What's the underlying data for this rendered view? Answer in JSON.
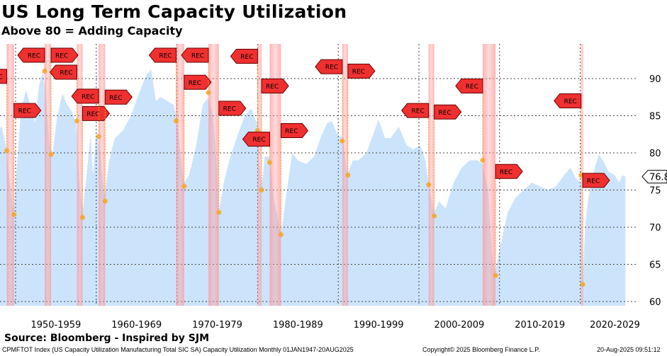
{
  "header": {
    "title": "US Long Term Capacity Utilization",
    "subtitle": "Above 80 = Adding Capacity"
  },
  "footer": {
    "source": "Source: Bloomberg - Inspired by SJM",
    "index_desc": "CPMFTOT Index (US Capacity Utilization Manufacturing Total SIC SA) Capacity Utilization  Monthly 01JAN1947-20AUG2025",
    "copyright": "Copyright© 2025 Bloomberg Finance L.P.",
    "timestamp": "20-Aug-2025 09:51:12"
  },
  "colors": {
    "area": "#cce4fb",
    "band": "#ff9a9a",
    "marker": "#f03030",
    "dot": "#f5a623"
  },
  "chart_data": {
    "type": "area",
    "title": "US Long Term Capacity Utilization",
    "ylim": [
      59,
      95
    ],
    "xlim": [
      1947,
      2028.5
    ],
    "yticks": [
      60,
      65,
      70,
      75,
      80,
      85,
      90
    ],
    "xgrid": [
      1950,
      1960,
      1970,
      1980,
      1990,
      2000,
      2010,
      2020
    ],
    "xtick_labels": [
      {
        "label": "1950-1959",
        "year": 1955
      },
      {
        "label": "1960-1969",
        "year": 1965
      },
      {
        "label": "1970-1979",
        "year": 1975
      },
      {
        "label": "1980-1989",
        "year": 1985
      },
      {
        "label": "1990-1999",
        "year": 1995
      },
      {
        "label": "2000-2009",
        "year": 2005
      },
      {
        "label": "2010-2019",
        "year": 2015
      },
      {
        "label": "2020-2029",
        "year": 2024.3
      }
    ],
    "last_value": {
      "label": "76.8",
      "value": 76.8
    },
    "marker_label": "REC",
    "series": [
      [
        1947.0,
        84
      ],
      [
        1947.6,
        83
      ],
      [
        1948.3,
        83.5
      ],
      [
        1948.8,
        81
      ],
      [
        1949.3,
        76
      ],
      [
        1949.6,
        73
      ],
      [
        1949.8,
        72.5
      ],
      [
        1950.2,
        79
      ],
      [
        1950.7,
        86
      ],
      [
        1951.3,
        88.5
      ],
      [
        1951.9,
        86
      ],
      [
        1952.4,
        84
      ],
      [
        1952.9,
        89
      ],
      [
        1953.4,
        91
      ],
      [
        1953.8,
        87
      ],
      [
        1954.2,
        81
      ],
      [
        1954.6,
        80
      ],
      [
        1955.1,
        84.5
      ],
      [
        1955.8,
        88
      ],
      [
        1956.4,
        86.5
      ],
      [
        1957.0,
        85.5
      ],
      [
        1957.5,
        84
      ],
      [
        1958.0,
        75
      ],
      [
        1958.3,
        72
      ],
      [
        1958.8,
        77
      ],
      [
        1959.3,
        82.5
      ],
      [
        1959.6,
        77
      ],
      [
        1960.0,
        83
      ],
      [
        1960.5,
        80
      ],
      [
        1961.0,
        74
      ],
      [
        1961.6,
        79
      ],
      [
        1962.3,
        82
      ],
      [
        1963.3,
        83
      ],
      [
        1964.3,
        85
      ],
      [
        1965.3,
        88
      ],
      [
        1966.2,
        90.5
      ],
      [
        1966.8,
        91.2
      ],
      [
        1967.4,
        87
      ],
      [
        1968.0,
        87.5
      ],
      [
        1968.8,
        87
      ],
      [
        1969.6,
        86.5
      ],
      [
        1970.1,
        84
      ],
      [
        1970.6,
        78
      ],
      [
        1970.9,
        76
      ],
      [
        1971.5,
        77
      ],
      [
        1972.4,
        81
      ],
      [
        1973.2,
        86.5
      ],
      [
        1973.9,
        87.5
      ],
      [
        1974.5,
        85
      ],
      [
        1974.9,
        79
      ],
      [
        1975.2,
        72
      ],
      [
        1975.8,
        76
      ],
      [
        1976.5,
        79
      ],
      [
        1977.4,
        82
      ],
      [
        1978.4,
        85
      ],
      [
        1979.2,
        86
      ],
      [
        1979.9,
        84
      ],
      [
        1980.3,
        78
      ],
      [
        1980.5,
        75.5
      ],
      [
        1980.9,
        79.5
      ],
      [
        1981.5,
        79.5
      ],
      [
        1982.0,
        74
      ],
      [
        1982.9,
        69
      ],
      [
        1983.5,
        74
      ],
      [
        1984.3,
        80
      ],
      [
        1985.0,
        79
      ],
      [
        1986.0,
        78.5
      ],
      [
        1987.0,
        79.5
      ],
      [
        1987.8,
        82
      ],
      [
        1988.6,
        84
      ],
      [
        1989.2,
        84.3
      ],
      [
        1989.9,
        82.5
      ],
      [
        1990.6,
        82
      ],
      [
        1991.1,
        77
      ],
      [
        1991.8,
        79
      ],
      [
        1992.5,
        79
      ],
      [
        1993.5,
        80
      ],
      [
        1994.5,
        83
      ],
      [
        1995.0,
        84.5
      ],
      [
        1995.8,
        82
      ],
      [
        1996.5,
        82
      ],
      [
        1997.5,
        83.5
      ],
      [
        1998.5,
        81
      ],
      [
        1999.3,
        80.5
      ],
      [
        2000.2,
        81
      ],
      [
        2000.8,
        79
      ],
      [
        2001.3,
        75
      ],
      [
        2001.9,
        72
      ],
      [
        2002.5,
        73.5
      ],
      [
        2003.3,
        72.5
      ],
      [
        2004.3,
        76
      ],
      [
        2005.3,
        78
      ],
      [
        2006.3,
        79
      ],
      [
        2007.3,
        79
      ],
      [
        2007.9,
        78.5
      ],
      [
        2008.6,
        75
      ],
      [
        2009.0,
        67
      ],
      [
        2009.4,
        63.5
      ],
      [
        2010.0,
        67
      ],
      [
        2011.0,
        72
      ],
      [
        2012.0,
        74
      ],
      [
        2013.0,
        75
      ],
      [
        2014.0,
        76
      ],
      [
        2015.0,
        75.5
      ],
      [
        2016.0,
        75
      ],
      [
        2017.0,
        75.5
      ],
      [
        2018.0,
        77
      ],
      [
        2018.8,
        78
      ],
      [
        2019.5,
        76.5
      ],
      [
        2020.1,
        76
      ],
      [
        2020.3,
        62
      ],
      [
        2020.6,
        70
      ],
      [
        2021.0,
        74
      ],
      [
        2021.8,
        78
      ],
      [
        2022.3,
        79.8
      ],
      [
        2022.8,
        79
      ],
      [
        2023.5,
        77.5
      ],
      [
        2024.3,
        77
      ],
      [
        2024.8,
        76
      ],
      [
        2025.2,
        77
      ],
      [
        2025.6,
        76.8
      ]
    ],
    "recessions": [
      {
        "start": 1948.9,
        "end": 1949.8,
        "start_value": 80.3,
        "end_value": 71.7
      },
      {
        "start": 1953.6,
        "end": 1954.4,
        "start_value": 91,
        "end_value": 79.8
      },
      {
        "start": 1957.6,
        "end": 1958.3,
        "start_value": 84.3,
        "end_value": 71.3
      },
      {
        "start": 1960.3,
        "end": 1961.1,
        "start_value": 82.2,
        "end_value": 73.5
      },
      {
        "start": 1969.9,
        "end": 1970.9,
        "start_value": 84.3,
        "end_value": 75.5
      },
      {
        "start": 1973.9,
        "end": 1975.2,
        "start_value": 88.1,
        "end_value": 72
      },
      {
        "start": 1980.0,
        "end": 1980.5,
        "start_value": 83,
        "end_value": 75
      },
      {
        "start": 1981.5,
        "end": 1982.9,
        "start_value": 78.7,
        "end_value": 69
      },
      {
        "start": 1990.5,
        "end": 1991.2,
        "start_value": 81.6,
        "end_value": 77
      },
      {
        "start": 2001.2,
        "end": 2001.9,
        "start_value": 75.7,
        "end_value": 71.5
      },
      {
        "start": 2007.9,
        "end": 2009.5,
        "start_value": 79,
        "end_value": 63.5
      },
      {
        "start": 2020.1,
        "end": 2020.3,
        "start_value": 77,
        "end_value": 62.3
      }
    ]
  }
}
